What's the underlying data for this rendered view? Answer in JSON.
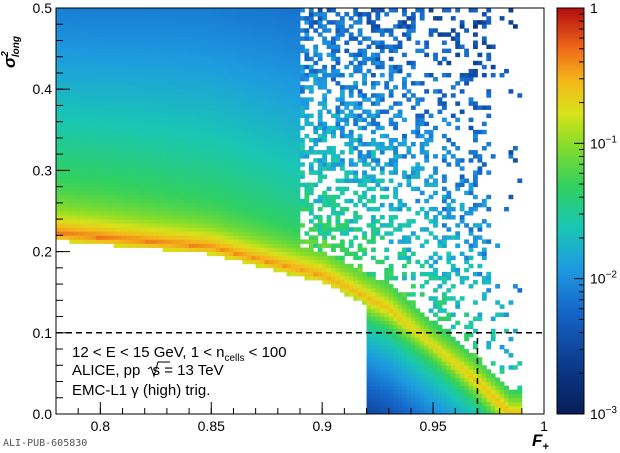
{
  "chart_data": {
    "type": "heatmap",
    "xlabel": "F",
    "xlabel_subscript": "+",
    "ylabel": "σ",
    "ylabel_superscript": "2",
    "ylabel_subscript": "long",
    "xlim": [
      0.78,
      1.0
    ],
    "ylim": [
      0.0,
      0.5
    ],
    "xticks": [
      0.8,
      0.85,
      0.9,
      0.95,
      1
    ],
    "xtick_labels": [
      "0.8",
      "0.85",
      "0.9",
      "0.95",
      "1"
    ],
    "yticks": [
      0,
      0.1,
      0.2,
      0.3,
      0.4,
      0.5
    ],
    "ytick_labels": [
      "0.0",
      "0.1",
      "0.2",
      "0.3",
      "0.4",
      "0.5"
    ],
    "colorbar": {
      "scale": "log",
      "range": [
        0.001,
        1
      ],
      "labels": [
        {
          "value": 1,
          "base": "1",
          "exp": ""
        },
        {
          "value": 0.1,
          "base": "10",
          "exp": "−1"
        },
        {
          "value": 0.01,
          "base": "10",
          "exp": "−2"
        },
        {
          "value": 0.001,
          "base": "10",
          "exp": "−3"
        }
      ]
    },
    "density_model": {
      "band_center": [
        [
          0.78,
          0.222
        ],
        [
          0.85,
          0.205
        ],
        [
          0.9,
          0.17
        ],
        [
          0.93,
          0.13
        ],
        [
          0.95,
          0.085
        ],
        [
          0.97,
          0.04
        ],
        [
          0.985,
          0.0
        ]
      ],
      "band_peak_values": [
        [
          0.78,
          0.4
        ],
        [
          0.9,
          0.3
        ],
        [
          0.95,
          0.15
        ],
        [
          0.98,
          0.25
        ]
      ],
      "sparse_region_start_x": 0.89,
      "empty_above_x": 0.99
    },
    "cut_lines": [
      {
        "orientation": "horizontal",
        "value": 0.1,
        "style": "dashed"
      },
      {
        "orientation": "vertical",
        "value": 0.97,
        "from": 0.0,
        "to": 0.1,
        "style": "dashed"
      }
    ],
    "annotations": {
      "line1": "12 < E < 15 GeV, 1 < n",
      "line1_sub": "cells",
      "line1_tail": " < 100",
      "line2": "ALICE, pp ",
      "line2_root": "s",
      "line2_tail": " = 13 TeV",
      "line3": "EMC-L1 γ (high) trig."
    },
    "grid": false,
    "legend": "none"
  },
  "watermark": "ALI-PUB-605830"
}
